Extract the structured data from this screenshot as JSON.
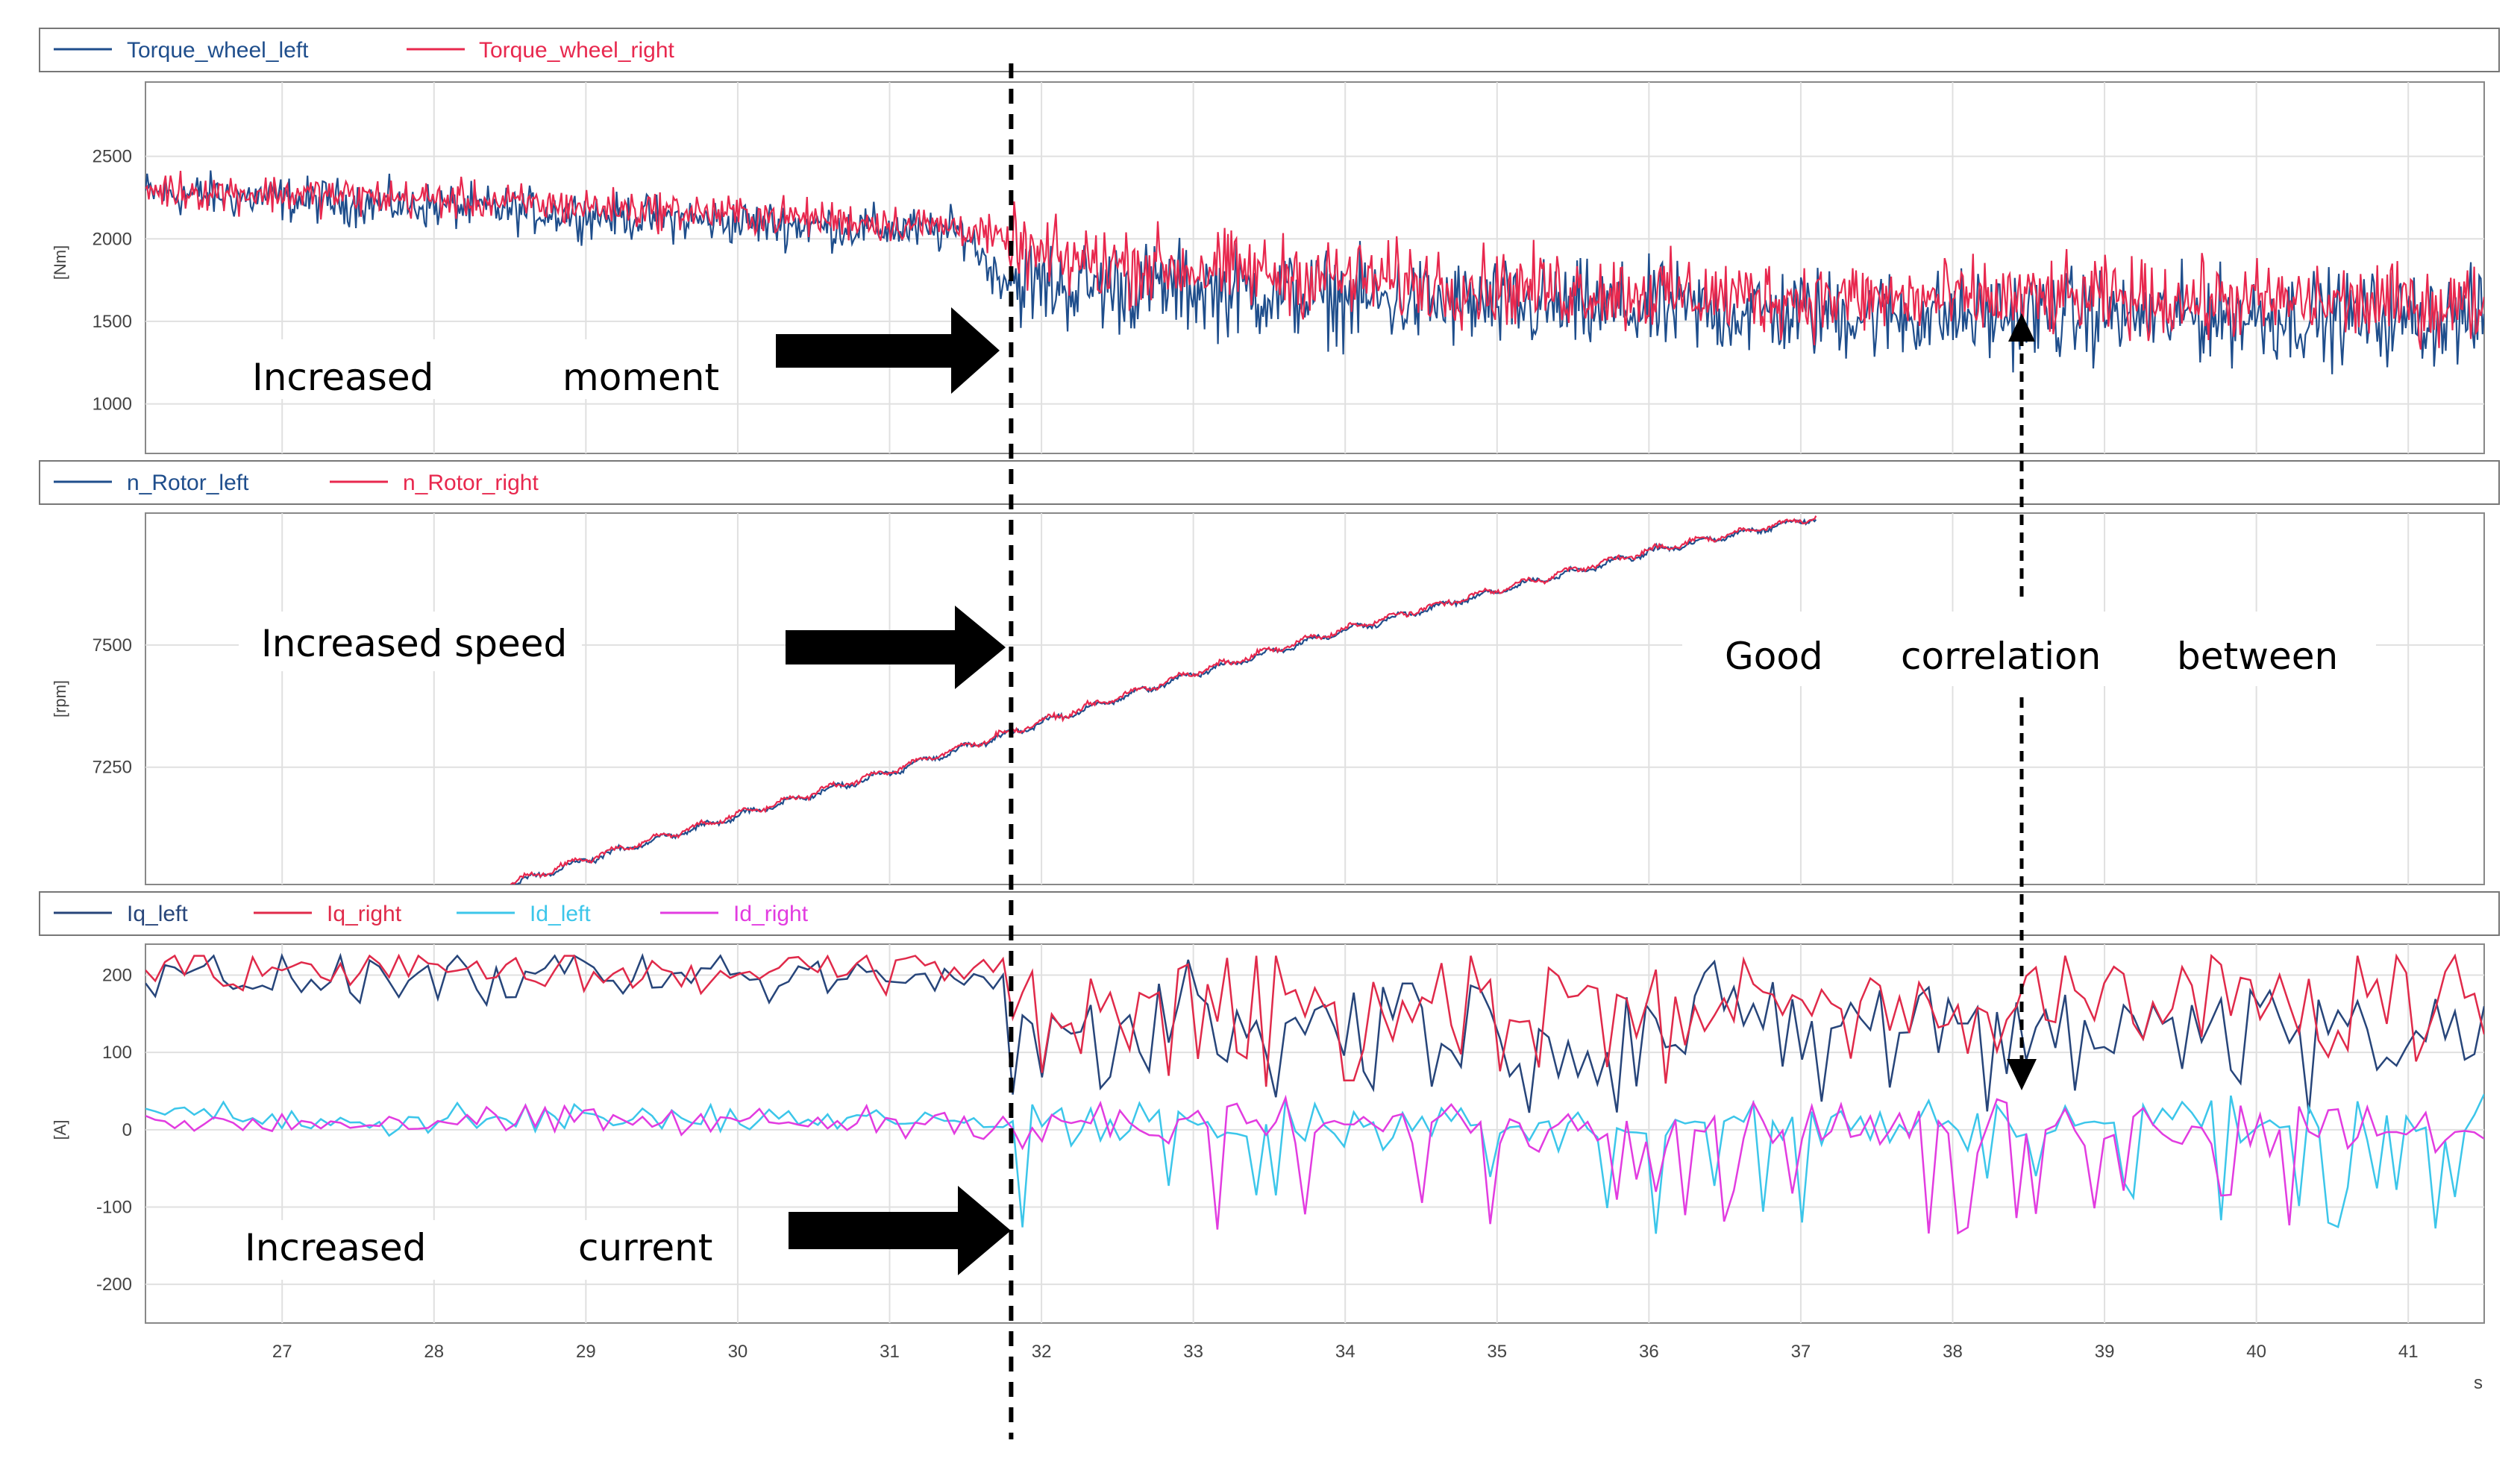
{
  "chart_data": [
    {
      "type": "line",
      "panel": "torque",
      "legend": [
        "Torque_wheel_left",
        "Torque_wheel_right"
      ],
      "ylabel": "[Nm]",
      "ylim": [
        700,
        2950
      ],
      "yticks": [
        1000,
        1500,
        2000,
        2500
      ],
      "x_range": [
        26.1,
        41.5
      ],
      "series": [
        {
          "name": "Torque_wheel_left",
          "color": "#1f4e8c",
          "x": [
            26.1,
            28,
            30,
            31.5,
            31.7,
            32,
            33,
            34,
            35,
            36,
            37,
            38,
            39,
            40,
            41.5
          ],
          "y": [
            2280,
            2200,
            2100,
            2040,
            1780,
            1720,
            1700,
            1640,
            1590,
            1570,
            1550,
            1530,
            1540,
            1530,
            1520
          ]
        },
        {
          "name": "Torque_wheel_right",
          "color": "#e8284e",
          "x": [
            26.1,
            28,
            30,
            31.5,
            32,
            33,
            34,
            35,
            36,
            37,
            38,
            39,
            40,
            41.5
          ],
          "y": [
            2300,
            2240,
            2150,
            2070,
            1880,
            1820,
            1760,
            1710,
            1670,
            1640,
            1630,
            1640,
            1620,
            1600
          ]
        }
      ],
      "annotations": [
        {
          "text_words": [
            "Increased",
            "moment"
          ]
        }
      ]
    },
    {
      "type": "line",
      "panel": "speed",
      "legend": [
        "n_Rotor_left",
        "n_Rotor_right"
      ],
      "ylabel": "[rpm]",
      "ylim": [
        7010,
        7770
      ],
      "yticks": [
        7250,
        7500
      ],
      "x_range": [
        26.1,
        41.5
      ],
      "series": [
        {
          "name": "n_Rotor_left",
          "color": "#1f4e8c",
          "x": [
            28.5,
            29,
            30,
            31,
            31.7,
            32,
            33,
            34,
            35,
            36,
            37.1
          ],
          "y": [
            7010,
            7060,
            7150,
            7240,
            7310,
            7340,
            7440,
            7530,
            7610,
            7690,
            7760
          ]
        },
        {
          "name": "n_Rotor_right",
          "color": "#e8284e",
          "x": [
            28.5,
            29,
            30,
            31,
            31.7,
            32,
            33,
            34,
            35,
            36,
            37.1
          ],
          "y": [
            7013,
            7063,
            7153,
            7243,
            7313,
            7343,
            7443,
            7533,
            7613,
            7693,
            7763
          ]
        }
      ],
      "annotations": [
        {
          "text_words": [
            "Increased speed"
          ]
        },
        {
          "text_words": [
            "Good",
            "correlation",
            "between"
          ]
        }
      ]
    },
    {
      "type": "line",
      "panel": "current",
      "legend": [
        "Iq_left",
        "Iq_right",
        "Id_left",
        "Id_right"
      ],
      "ylabel": "[A]",
      "ylim": [
        -250,
        240
      ],
      "yticks": [
        -200,
        -100,
        0,
        100,
        200
      ],
      "xticks": [
        27,
        28,
        29,
        30,
        31,
        32,
        33,
        34,
        35,
        36,
        37,
        38,
        39,
        40,
        41
      ],
      "xunit": "s",
      "x_range": [
        26.1,
        41.5
      ],
      "series": [
        {
          "name": "Iq_left",
          "color": "#27457a",
          "base_before": 195,
          "base_after": 140
        },
        {
          "name": "Iq_right",
          "color": "#e02a4a",
          "base_before": 205,
          "base_after": 165
        },
        {
          "name": "Id_left",
          "color": "#3cc6ea",
          "base_before": 15,
          "base_after": 10
        },
        {
          "name": "Id_right",
          "color": "#e23ce0",
          "base_before": 10,
          "base_after": 5
        }
      ],
      "annotations": [
        {
          "text_words": [
            "Increased",
            "current"
          ]
        }
      ]
    }
  ],
  "marker_x": 31.8
}
